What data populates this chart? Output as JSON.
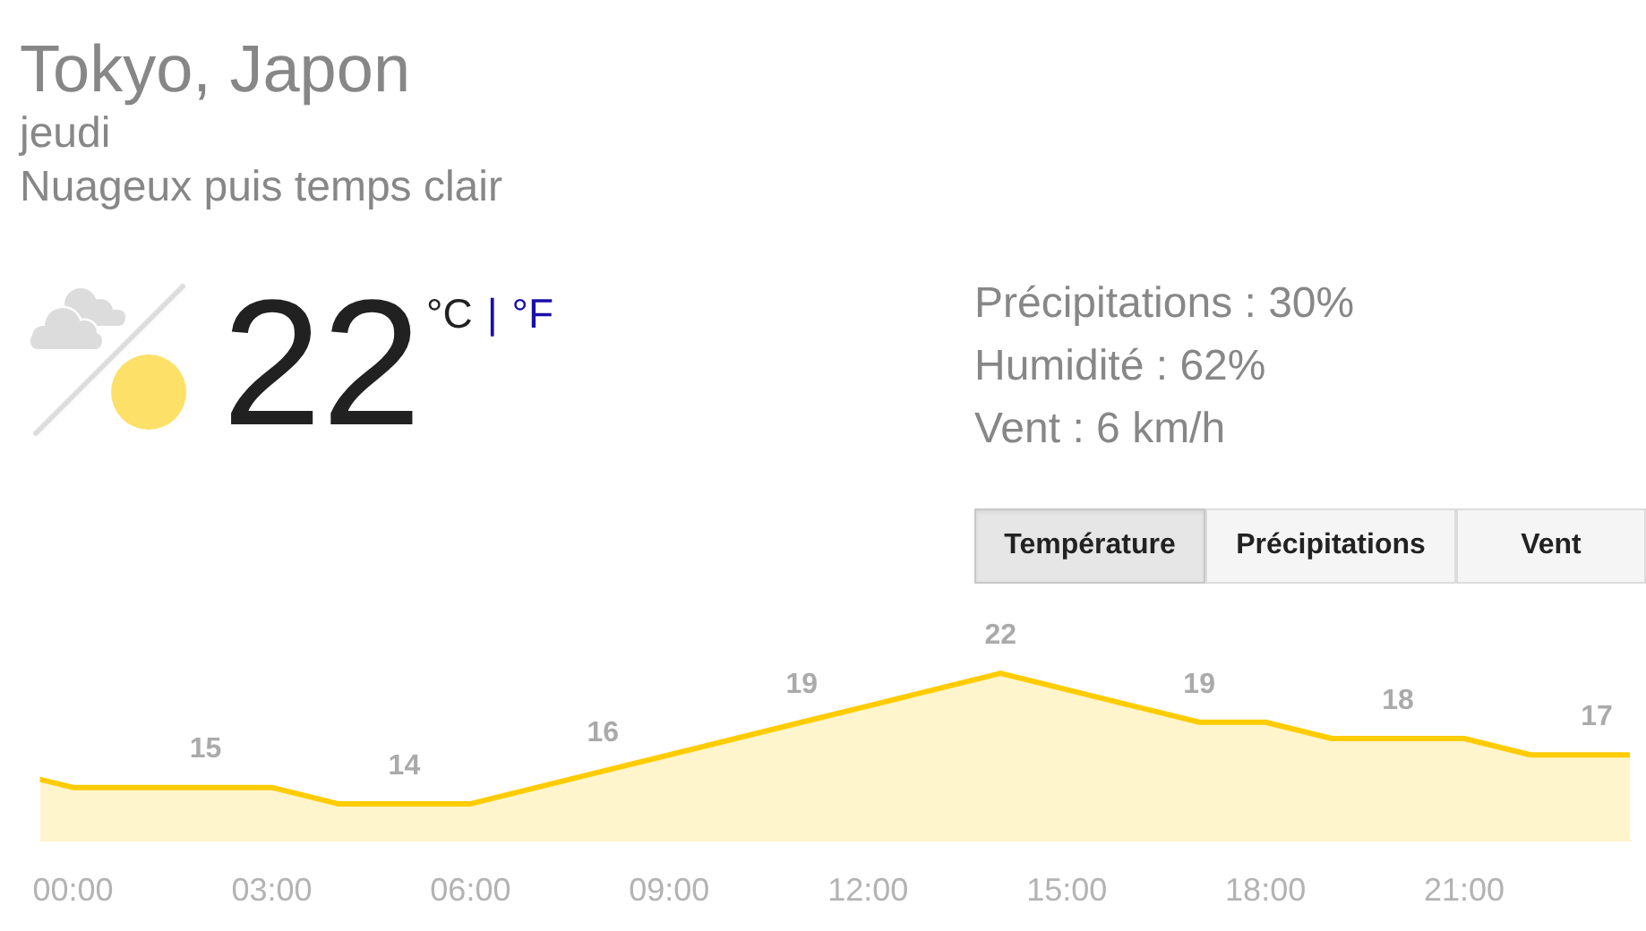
{
  "chart_data": {
    "type": "area",
    "title": "Tokyo, Japon",
    "subtitle": "jeudi",
    "annotations": [
      "Nuageux puis temps clair",
      "22",
      "°C",
      "|",
      "°F",
      "Précipitations : 30%",
      "Humidité : 62%",
      "Vent : 6 km/h",
      "Température",
      "Précipitations",
      "Vent"
    ],
    "x": [
      -0.5,
      0,
      1,
      2,
      3,
      4,
      5,
      6,
      7,
      8,
      9,
      10,
      11,
      12,
      13,
      14,
      15,
      16,
      17,
      18,
      19,
      20,
      21,
      22,
      23,
      23.5
    ],
    "values": [
      15.5,
      15,
      15,
      15,
      15,
      14,
      14,
      14,
      15,
      16,
      17,
      18,
      19,
      20,
      21,
      22,
      21,
      20,
      19,
      19,
      18,
      18,
      18,
      17,
      17,
      17
    ],
    "value_labels": [
      null,
      null,
      null,
      "15",
      null,
      null,
      "14",
      null,
      null,
      "16",
      null,
      null,
      "19",
      null,
      null,
      "22",
      null,
      null,
      "19",
      null,
      null,
      "18",
      null,
      null,
      "17",
      null
    ],
    "color": "#ffcc00",
    "xlim": [
      -0.5,
      23.5
    ],
    "xticks": [
      {
        "value": 0,
        "label": "00:00"
      },
      {
        "value": 3,
        "label": "03:00"
      },
      {
        "value": 6,
        "label": "06:00"
      },
      {
        "value": 9,
        "label": "09:00"
      },
      {
        "value": 12,
        "label": "12:00"
      },
      {
        "value": 15,
        "label": "15:00"
      },
      {
        "value": 18,
        "label": "18:00"
      },
      {
        "value": 21,
        "label": "21:00"
      }
    ],
    "tick_labels": "x",
    "legend": false
  }
}
